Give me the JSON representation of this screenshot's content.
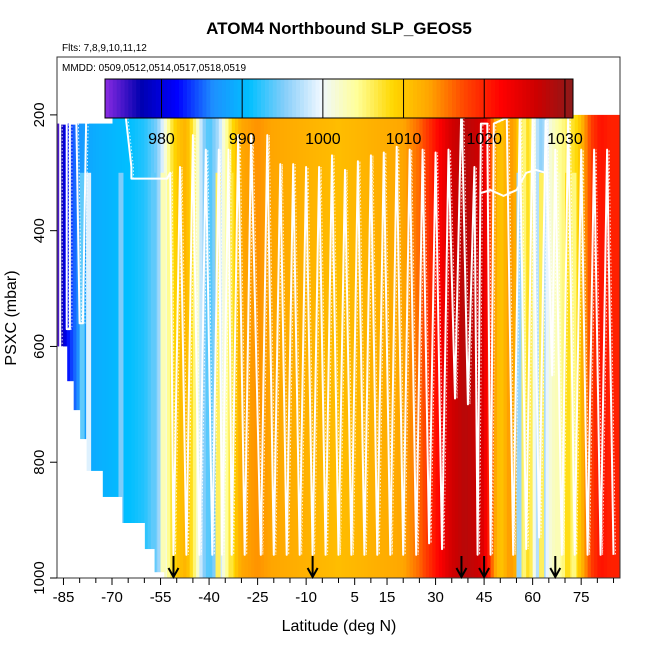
{
  "chart_data": {
    "type": "heatmap",
    "title": "ATOM4 Northbound SLP_GEOS5",
    "flights_label": "Flts: 7,8,9,10,11,12",
    "dates_label": "MMDD: 0509,0512,0514,0517,0518,0519",
    "xlabel": "Latitude (deg N)",
    "ylabel": "PSXC (mbar)",
    "xlim": [
      -87,
      87
    ],
    "ylim": [
      1000,
      100
    ],
    "x_ticks": [
      -85,
      -70,
      -55,
      -40,
      -25,
      -10,
      5,
      15,
      30,
      45,
      60,
      75
    ],
    "x_minor_ticks": [
      -80,
      -75,
      -65,
      -60,
      -50,
      -45,
      -35,
      -30,
      -20,
      -15,
      -5,
      0,
      10,
      20,
      25,
      35,
      40,
      50,
      55,
      65,
      70,
      80,
      85
    ],
    "y_ticks": [
      200,
      400,
      600,
      800,
      1000
    ],
    "colorbar": {
      "min": 973,
      "max": 1031,
      "ticks": [
        980,
        990,
        1000,
        1010,
        1020,
        1030
      ],
      "colors": [
        "#8a2be2",
        "#0000b0",
        "#0000ff",
        "#1e90ff",
        "#00bfff",
        "#87cefa",
        "#f0f8ff",
        "#ffff99",
        "#ffd700",
        "#ffa500",
        "#ff4500",
        "#ff0000",
        "#cc0000",
        "#8b1a1a"
      ]
    },
    "slp_by_latitude": [
      {
        "lat": -86,
        "slp": 975
      },
      {
        "lat": -84,
        "slp": 982
      },
      {
        "lat": -80,
        "slp": 987
      },
      {
        "lat": -76,
        "slp": 989
      },
      {
        "lat": -70,
        "slp": 990
      },
      {
        "lat": -64,
        "slp": 991
      },
      {
        "lat": -60,
        "slp": 992
      },
      {
        "lat": -56,
        "slp": 995
      },
      {
        "lat": -54,
        "slp": 1000
      },
      {
        "lat": -52,
        "slp": 1006
      },
      {
        "lat": -50,
        "slp": 1010
      },
      {
        "lat": -47,
        "slp": 1012
      },
      {
        "lat": -44,
        "slp": 1004
      },
      {
        "lat": -42,
        "slp": 996
      },
      {
        "lat": -40,
        "slp": 993
      },
      {
        "lat": -37,
        "slp": 997
      },
      {
        "lat": -35,
        "slp": 1003
      },
      {
        "lat": -33,
        "slp": 1008
      },
      {
        "lat": -30,
        "slp": 1013
      },
      {
        "lat": -25,
        "slp": 1014
      },
      {
        "lat": -20,
        "slp": 1013
      },
      {
        "lat": -10,
        "slp": 1012
      },
      {
        "lat": 0,
        "slp": 1011
      },
      {
        "lat": 10,
        "slp": 1012
      },
      {
        "lat": 20,
        "slp": 1013
      },
      {
        "lat": 25,
        "slp": 1016
      },
      {
        "lat": 30,
        "slp": 1021
      },
      {
        "lat": 35,
        "slp": 1026
      },
      {
        "lat": 39,
        "slp": 1028
      },
      {
        "lat": 42,
        "slp": 1027
      },
      {
        "lat": 44,
        "slp": 1026
      },
      {
        "lat": 46,
        "slp": 1022
      },
      {
        "lat": 48,
        "slp": 1014
      },
      {
        "lat": 50,
        "slp": 1010
      },
      {
        "lat": 53,
        "slp": 1014
      },
      {
        "lat": 55,
        "slp": 1012
      },
      {
        "lat": 57,
        "slp": 1004
      },
      {
        "lat": 59,
        "slp": 1009
      },
      {
        "lat": 61,
        "slp": 998
      },
      {
        "lat": 63,
        "slp": 995
      },
      {
        "lat": 65,
        "slp": 1001
      },
      {
        "lat": 68,
        "slp": 1004
      },
      {
        "lat": 71,
        "slp": 1006
      },
      {
        "lat": 74,
        "slp": 1009
      },
      {
        "lat": 78,
        "slp": 1018
      },
      {
        "lat": 81,
        "slp": 1021
      },
      {
        "lat": 84,
        "slp": 1020
      }
    ],
    "vertical_bands": [
      {
        "lat": -80,
        "slp": 994
      },
      {
        "lat": -78,
        "slp": 999
      },
      {
        "lat": -68,
        "slp": 995
      },
      {
        "lat": -58,
        "slp": 994
      },
      {
        "lat": -55,
        "slp": 1003
      },
      {
        "lat": -38,
        "slp": 1006
      },
      {
        "lat": -34,
        "slp": 1007
      },
      {
        "lat": 55,
        "slp": 996
      },
      {
        "lat": 62,
        "slp": 1006
      },
      {
        "lat": 67,
        "slp": 1003
      },
      {
        "lat": 70,
        "slp": 1008
      },
      {
        "lat": 72,
        "slp": 1005
      }
    ],
    "profile_top_pressure": [
      {
        "lat_start": -87,
        "lat_end": -70,
        "top": 215
      },
      {
        "lat_start": -72,
        "lat_end": -64,
        "top": 170
      },
      {
        "lat_start": -64,
        "lat_end": 48,
        "top": 170
      },
      {
        "lat_start": 48,
        "lat_end": 71,
        "top": 170
      },
      {
        "lat_start": 71,
        "lat_end": 87,
        "top": 200
      }
    ],
    "profile_bottom_pressure": [
      {
        "lat": -87,
        "bottom": 600
      },
      {
        "lat": -84,
        "bottom": 660
      },
      {
        "lat": -82,
        "bottom": 710
      },
      {
        "lat": -80,
        "bottom": 760
      },
      {
        "lat": -78,
        "bottom": 815
      },
      {
        "lat": -73,
        "bottom": 860
      },
      {
        "lat": -67,
        "bottom": 905
      },
      {
        "lat": -60,
        "bottom": 950
      },
      {
        "lat": -57,
        "bottom": 990
      },
      {
        "lat": -54,
        "bottom": 1000
      },
      {
        "lat": 87,
        "bottom": 1000
      }
    ],
    "flight_track": [
      {
        "lat": -86,
        "p": 620
      },
      {
        "lat": -86,
        "p": 215
      },
      {
        "lat": -84,
        "p": 215
      },
      {
        "lat": -84,
        "p": 570
      },
      {
        "lat": -83,
        "p": 570
      },
      {
        "lat": -83,
        "p": 215
      },
      {
        "lat": -81,
        "p": 215
      },
      {
        "lat": -80,
        "p": 560
      },
      {
        "lat": -79,
        "p": 560
      },
      {
        "lat": -78,
        "p": 215
      },
      {
        "lat": -75,
        "p": 190
      },
      {
        "lat": -66,
        "p": 190
      },
      {
        "lat": -64,
        "p": 290
      },
      {
        "lat": -64,
        "p": 310
      },
      {
        "lat": -53,
        "p": 310
      },
      {
        "lat": -52,
        "p": 300
      },
      {
        "lat": -51,
        "p": 960
      },
      {
        "lat": -49,
        "p": 290
      },
      {
        "lat": -47,
        "p": 960
      },
      {
        "lat": -45,
        "p": 235
      },
      {
        "lat": -43,
        "p": 960
      },
      {
        "lat": -41,
        "p": 260
      },
      {
        "lat": -39,
        "p": 960
      },
      {
        "lat": -37,
        "p": 260
      },
      {
        "lat": -36,
        "p": 960
      },
      {
        "lat": -34,
        "p": 260
      },
      {
        "lat": -33,
        "p": 960
      },
      {
        "lat": -31,
        "p": 235
      },
      {
        "lat": -29,
        "p": 960
      },
      {
        "lat": -27,
        "p": 235
      },
      {
        "lat": -24,
        "p": 960
      },
      {
        "lat": -22,
        "p": 235
      },
      {
        "lat": -20,
        "p": 960
      },
      {
        "lat": -18,
        "p": 285
      },
      {
        "lat": -16,
        "p": 960
      },
      {
        "lat": -14,
        "p": 285
      },
      {
        "lat": -12,
        "p": 960
      },
      {
        "lat": -10,
        "p": 290
      },
      {
        "lat": -8,
        "p": 960
      },
      {
        "lat": -6,
        "p": 290
      },
      {
        "lat": -4,
        "p": 960
      },
      {
        "lat": -2,
        "p": 270
      },
      {
        "lat": 0,
        "p": 960
      },
      {
        "lat": 2,
        "p": 295
      },
      {
        "lat": 4,
        "p": 960
      },
      {
        "lat": 6,
        "p": 280
      },
      {
        "lat": 8,
        "p": 960
      },
      {
        "lat": 10,
        "p": 270
      },
      {
        "lat": 12,
        "p": 960
      },
      {
        "lat": 14,
        "p": 265
      },
      {
        "lat": 16,
        "p": 960
      },
      {
        "lat": 18,
        "p": 255
      },
      {
        "lat": 20,
        "p": 960
      },
      {
        "lat": 22,
        "p": 260
      },
      {
        "lat": 24,
        "p": 960
      },
      {
        "lat": 26,
        "p": 260
      },
      {
        "lat": 28,
        "p": 940
      },
      {
        "lat": 30,
        "p": 265
      },
      {
        "lat": 32,
        "p": 950
      },
      {
        "lat": 34,
        "p": 260
      },
      {
        "lat": 36,
        "p": 690
      },
      {
        "lat": 38,
        "p": 175
      },
      {
        "lat": 40,
        "p": 700
      },
      {
        "lat": 42,
        "p": 290
      },
      {
        "lat": 43,
        "p": 960
      },
      {
        "lat": 44,
        "p": 215
      },
      {
        "lat": 46,
        "p": 215
      },
      {
        "lat": 47,
        "p": 960
      },
      {
        "lat": 48,
        "p": 215
      },
      {
        "lat": 52,
        "p": 205
      },
      {
        "lat": 54,
        "p": 960
      },
      {
        "lat": 56,
        "p": 205
      },
      {
        "lat": 58,
        "p": 950
      },
      {
        "lat": 60,
        "p": 205
      },
      {
        "lat": 62,
        "p": 930
      },
      {
        "lat": 64,
        "p": 210
      },
      {
        "lat": 66,
        "p": 650
      },
      {
        "lat": 67,
        "p": 260
      },
      {
        "lat": 69,
        "p": 960
      },
      {
        "lat": 71,
        "p": 200
      },
      {
        "lat": 73,
        "p": 960
      },
      {
        "lat": 75,
        "p": 260
      },
      {
        "lat": 77,
        "p": 960
      },
      {
        "lat": 79,
        "p": 260
      },
      {
        "lat": 81,
        "p": 960
      },
      {
        "lat": 83,
        "p": 260
      },
      {
        "lat": 85,
        "p": 960
      }
    ],
    "secondary_track": [
      {
        "lat": 44,
        "p": 335
      },
      {
        "lat": 47,
        "p": 330
      },
      {
        "lat": 51,
        "p": 340
      },
      {
        "lat": 55,
        "p": 330
      },
      {
        "lat": 58,
        "p": 300
      },
      {
        "lat": 61,
        "p": 295
      },
      {
        "lat": 64,
        "p": 300
      }
    ],
    "arrow_latitudes": [
      -51,
      -8,
      38,
      45,
      67
    ]
  }
}
